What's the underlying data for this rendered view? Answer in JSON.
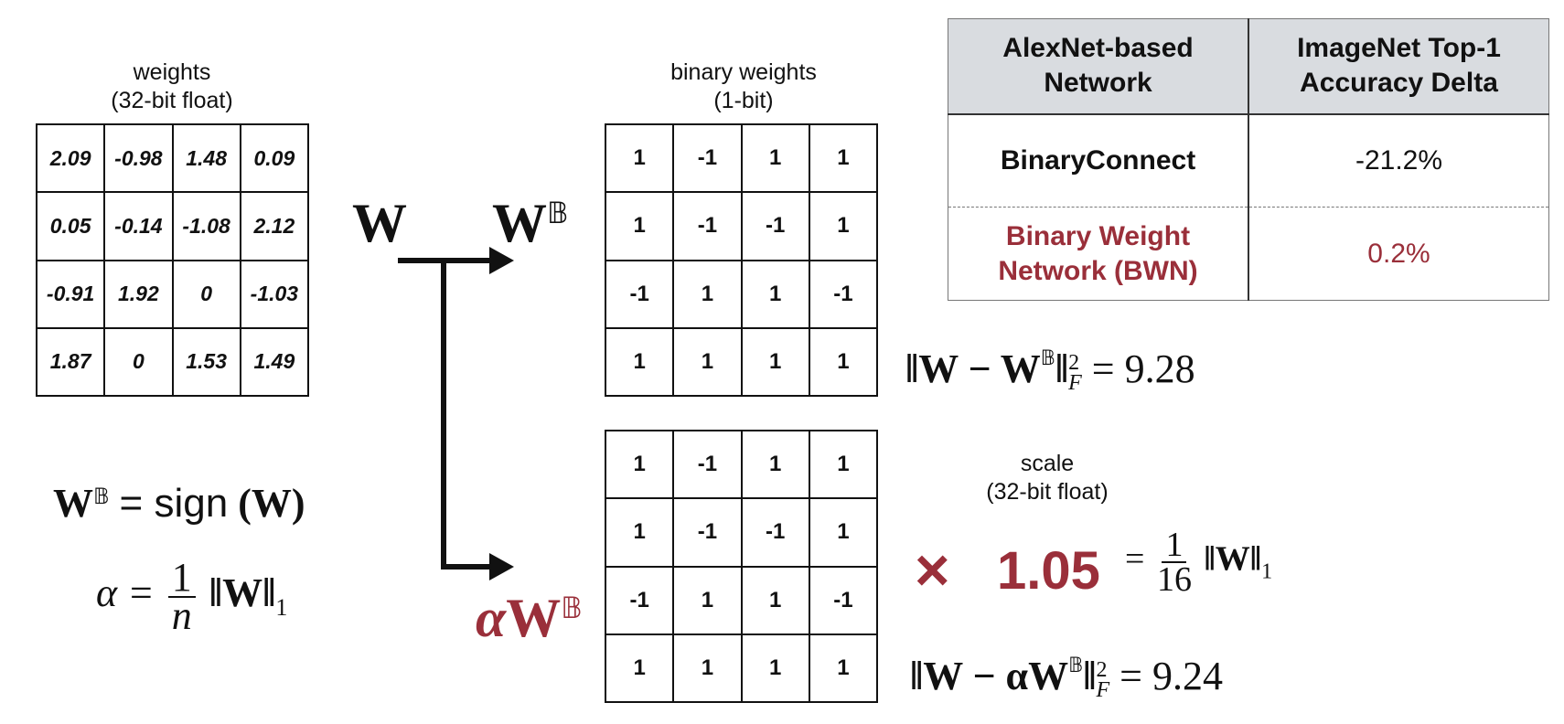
{
  "weights": {
    "caption": [
      "weights",
      "(32-bit float)"
    ],
    "values": [
      [
        "2.09",
        "-0.98",
        "1.48",
        "0.09"
      ],
      [
        "0.05",
        "-0.14",
        "-1.08",
        "2.12"
      ],
      [
        "-0.91",
        "1.92",
        "0",
        "-1.03"
      ],
      [
        "1.87",
        "0",
        "1.53",
        "1.49"
      ]
    ]
  },
  "binary_weights": {
    "caption": [
      "binary weights",
      "(1-bit)"
    ],
    "values": [
      [
        "1",
        "-1",
        "1",
        "1"
      ],
      [
        "1",
        "-1",
        "-1",
        "1"
      ],
      [
        "-1",
        "1",
        "1",
        "-1"
      ],
      [
        "1",
        "1",
        "1",
        "1"
      ]
    ]
  },
  "scaled_weights": {
    "values": [
      [
        "1",
        "-1",
        "1",
        "1"
      ],
      [
        "1",
        "-1",
        "-1",
        "1"
      ],
      [
        "-1",
        "1",
        "1",
        "-1"
      ],
      [
        "1",
        "1",
        "1",
        "1"
      ]
    ]
  },
  "symbols": {
    "W": "W",
    "WB": "W",
    "BB": "𝔹",
    "alpha": "α"
  },
  "scale": {
    "caption": [
      "scale",
      "(32-bit float)"
    ],
    "times": "×",
    "value": "1.05",
    "eq_rhs_num": "1",
    "eq_rhs_den": "16",
    "eq_rhs_norm": "‖W‖",
    "eq_rhs_sub": "1"
  },
  "formulas": {
    "sign_lhs": "W",
    "sign_rhs": "= sign",
    "sign_arg": "(W)",
    "alpha_lhs": "α =",
    "alpha_num": "1",
    "alpha_den": "n",
    "alpha_norm": "‖W‖",
    "alpha_sub": "1",
    "err1_text": "‖W − W",
    "err1_close": "‖",
    "err1_sup": "2",
    "err1_sub": "F",
    "err1_value": "= 9.28",
    "err2_text": "‖W − αW",
    "err2_close": "‖",
    "err2_sup": "2",
    "err2_sub": "F",
    "err2_value": "= 9.24"
  },
  "comparison_table": {
    "headers": [
      "AlexNet-based Network",
      "ImageNet Top-1 Accuracy Delta"
    ],
    "header_lines": [
      [
        "AlexNet-based",
        "Network"
      ],
      [
        "ImageNet Top-1",
        "Accuracy Delta"
      ]
    ],
    "rows": [
      {
        "name": [
          "BinaryConnect"
        ],
        "delta": "-21.2%",
        "highlight": false
      },
      {
        "name": [
          "Binary Weight",
          "Network (BWN)"
        ],
        "delta": "0.2%",
        "highlight": true
      }
    ]
  },
  "colors": {
    "accent": "#9a2f3a",
    "header_bg": "#d9dce0",
    "ink": "#111111"
  }
}
